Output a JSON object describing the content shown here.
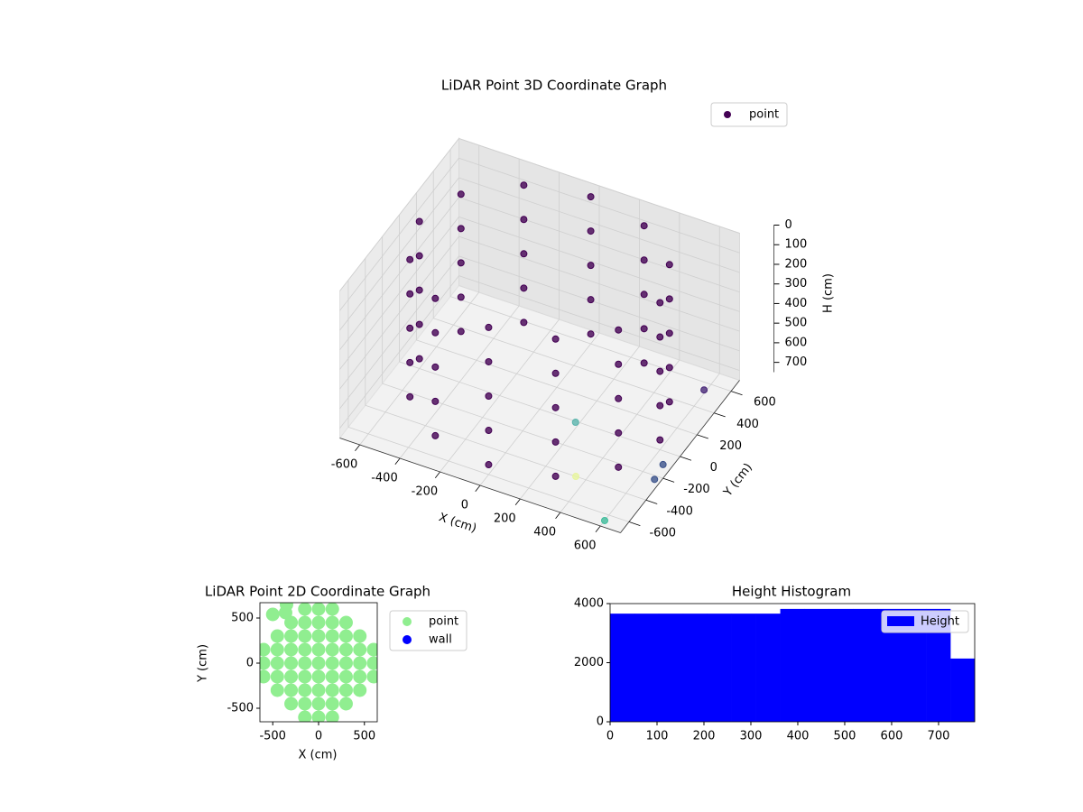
{
  "chart_data": [
    {
      "type": "scatter3d",
      "title": "LiDAR Point 3D Coordinate Graph",
      "xlabel": "X (cm)",
      "ylabel": "Y (cm)",
      "zlabel": "H (cm)",
      "xlim": [
        -700,
        700
      ],
      "ylim": [
        -700,
        700
      ],
      "zlim": [
        0,
        750
      ],
      "z_inverted": true,
      "xticks": [
        -600,
        -400,
        -200,
        0,
        200,
        400,
        600
      ],
      "yticks": [
        -600,
        -400,
        -200,
        0,
        200,
        400,
        600
      ],
      "zticks": [
        0,
        100,
        200,
        300,
        400,
        500,
        600,
        700
      ],
      "grid": true,
      "legend": "upper right",
      "series": [
        {
          "name": "point",
          "color": "#440154",
          "x": [
            600,
            520,
            300,
            0,
            -300,
            -520,
            -600,
            -520,
            -300,
            0,
            300,
            520,
            600,
            520,
            300,
            0,
            -300,
            -520,
            -600,
            -520,
            -300,
            0,
            300,
            520,
            600,
            520,
            300,
            0,
            -300,
            -520,
            -600,
            -520,
            -300,
            0,
            300,
            520,
            600,
            520,
            300,
            0,
            -300,
            -520,
            -600,
            -520,
            -300,
            0,
            300,
            520,
            600,
            520,
            300,
            0,
            -300,
            -520,
            -600,
            -520,
            -300,
            0,
            300,
            520
          ],
          "y": [
            0,
            300,
            520,
            600,
            520,
            300,
            0,
            -300,
            -520,
            -600,
            -520,
            -300,
            0,
            300,
            520,
            600,
            520,
            300,
            0,
            -300,
            -520,
            -600,
            -520,
            -300,
            0,
            300,
            520,
            600,
            520,
            300,
            0,
            -300,
            -520,
            -600,
            -520,
            -300,
            0,
            300,
            520,
            600,
            520,
            300,
            0,
            -300,
            -520,
            -600,
            -520,
            -300,
            0,
            300,
            520,
            600,
            520,
            300,
            0,
            -300,
            -520,
            -600,
            -520,
            -300
          ],
          "z": [
            0,
            0,
            0,
            0,
            0,
            0,
            0,
            0,
            0,
            0,
            0,
            0,
            175,
            175,
            175,
            175,
            175,
            175,
            175,
            175,
            175,
            175,
            175,
            175,
            350,
            350,
            350,
            350,
            350,
            350,
            350,
            350,
            350,
            350,
            350,
            350,
            525,
            525,
            525,
            525,
            525,
            525,
            525,
            525,
            525,
            525,
            525,
            525,
            700,
            700,
            700,
            700,
            700,
            700,
            700,
            700,
            700,
            700,
            700,
            700
          ]
        },
        {
          "x": [
            200,
            350,
            600,
            700,
            700,
            650
          ],
          "y": [
            -50,
            -400,
            -650,
            -300,
            -200,
            400
          ],
          "z": [
            720,
            750,
            750,
            700,
            680,
            650
          ],
          "colors": [
            "#5ab4ac",
            "#e7f59e",
            "#3fbc9b",
            "#3b528b",
            "#3b528b",
            "#482878"
          ]
        }
      ]
    },
    {
      "type": "scatter",
      "title": "LiDAR Point 2D Coordinate Graph",
      "xlabel": "X (cm)",
      "ylabel": "Y (cm)",
      "xlim": [
        -640,
        640
      ],
      "ylim": [
        -650,
        670
      ],
      "xticks": [
        -500,
        0,
        500
      ],
      "yticks": [
        -500,
        0,
        500
      ],
      "legend": "outside right",
      "series": [
        {
          "name": "point",
          "color": "#90ee90",
          "x": [
            -600,
            -600,
            -600,
            -450,
            -450,
            -450,
            -450,
            -450,
            -300,
            -300,
            -300,
            -300,
            -300,
            -300,
            -300,
            -150,
            -150,
            -150,
            -150,
            -150,
            -150,
            -150,
            -150,
            -150,
            0,
            0,
            0,
            0,
            0,
            0,
            0,
            0,
            0,
            150,
            150,
            150,
            150,
            150,
            150,
            150,
            150,
            150,
            300,
            300,
            300,
            300,
            300,
            300,
            300,
            450,
            450,
            450,
            450,
            450,
            600,
            600,
            600,
            -500,
            -350,
            -360
          ],
          "y": [
            -150,
            0,
            150,
            -300,
            -150,
            0,
            150,
            300,
            -450,
            -300,
            -150,
            0,
            150,
            300,
            450,
            -600,
            -450,
            -300,
            -150,
            0,
            150,
            300,
            450,
            600,
            -600,
            -450,
            -300,
            -150,
            0,
            150,
            300,
            450,
            600,
            -600,
            -450,
            -300,
            -150,
            0,
            150,
            300,
            450,
            600,
            -450,
            -300,
            -150,
            0,
            150,
            300,
            450,
            -300,
            -150,
            0,
            150,
            300,
            -150,
            0,
            150,
            540,
            650,
            560
          ]
        },
        {
          "name": "wall",
          "color": "#0000ff",
          "x": [],
          "y": []
        }
      ]
    },
    {
      "type": "histogram",
      "title": "Height Histogram",
      "name": "Height",
      "color": "#0000ff",
      "legend": "upper right",
      "bins": [
        0,
        51.8,
        103.6,
        155.4,
        207.2,
        259,
        310.8,
        362.6,
        414.4,
        466.2,
        518,
        569.8,
        621.6,
        673.4,
        725.2,
        777
      ],
      "counts": [
        3660,
        3660,
        3660,
        3660,
        3660,
        3660,
        3660,
        3820,
        3820,
        3820,
        3820,
        3820,
        3820,
        3820,
        2140
      ],
      "xlim": [
        0,
        777
      ],
      "ylim": [
        0,
        4000
      ],
      "xticks": [
        0,
        100,
        200,
        300,
        400,
        500,
        600,
        700
      ],
      "yticks": [
        0,
        2000,
        4000
      ]
    }
  ]
}
